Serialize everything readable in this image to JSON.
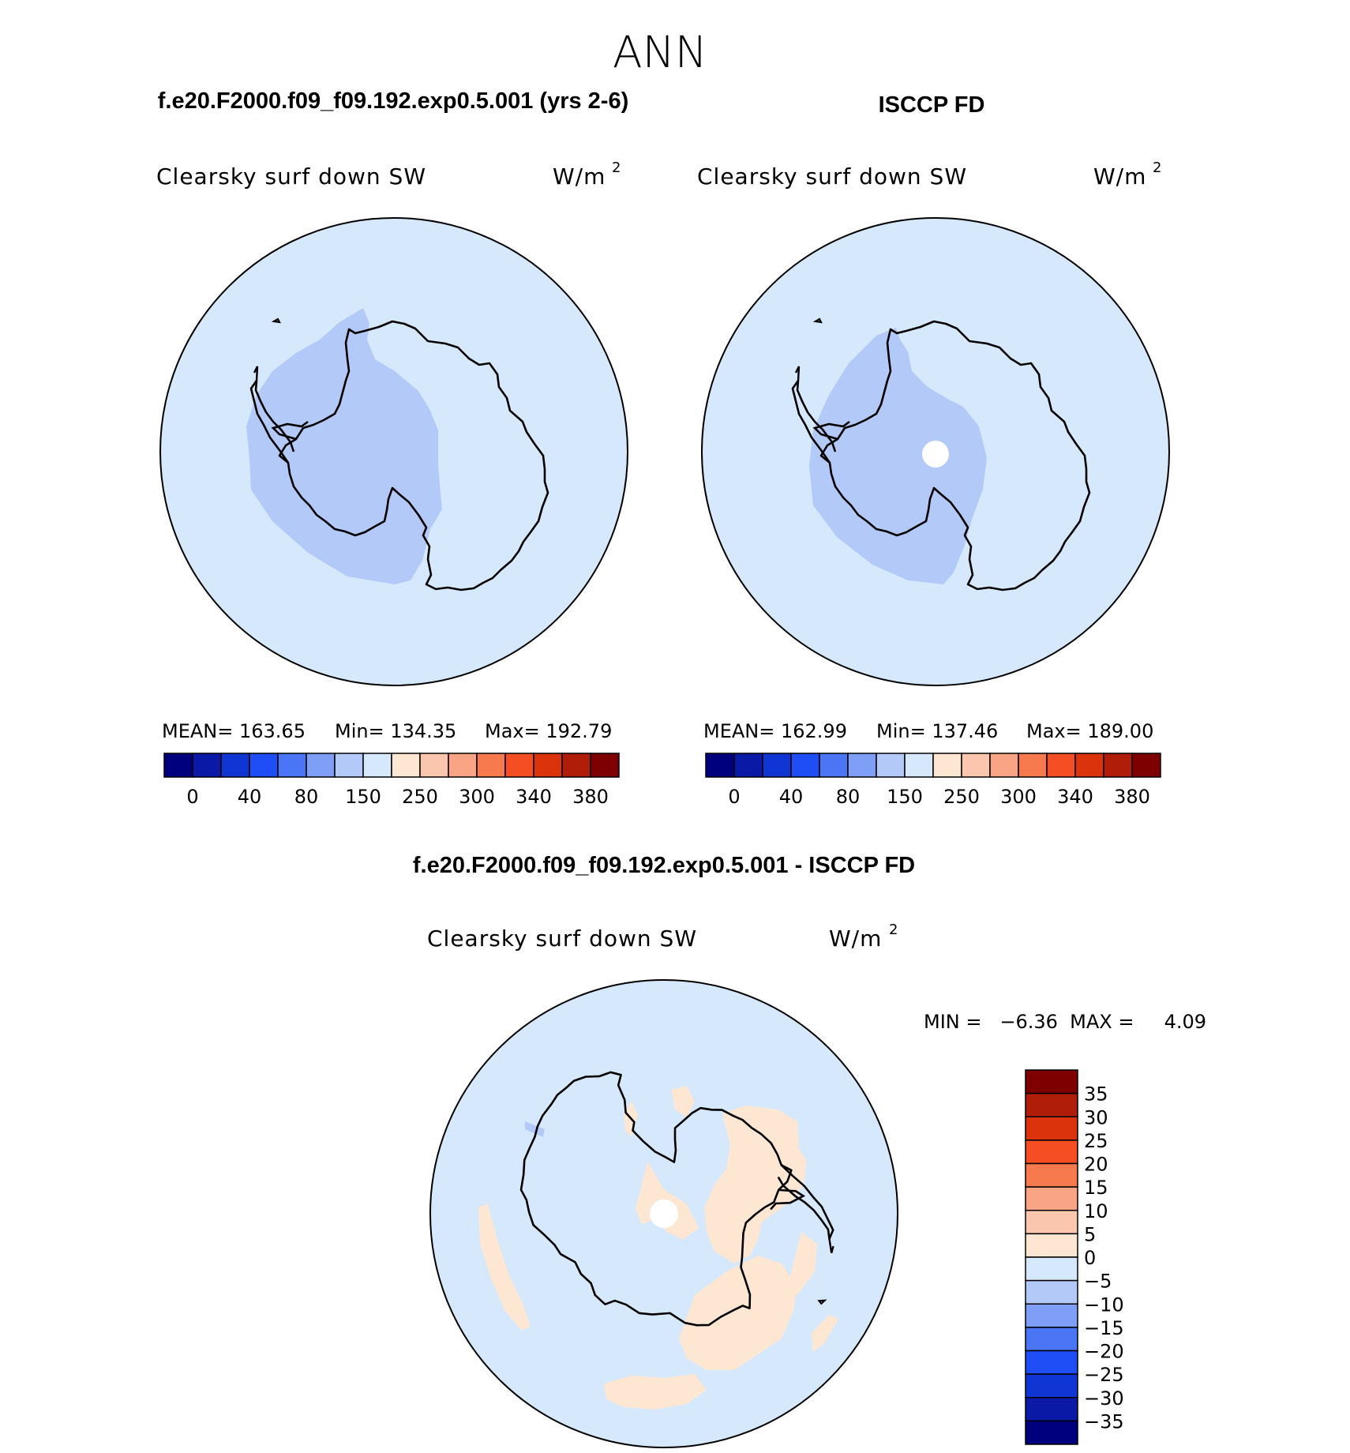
{
  "page": {
    "title": "ANN"
  },
  "panels": [
    {
      "case_title": "f.e20.F2000.f09_f09.192.exp0.5.001 (yrs 2-6)",
      "variable": "Clearsky surf down SW",
      "units": "W/m",
      "units_exp": "2",
      "stats": {
        "mean": "MEAN= 163.65",
        "min": "Min= 134.35",
        "max": "Max= 192.79"
      }
    },
    {
      "case_title": "ISCCP FD",
      "variable": "Clearsky surf down SW",
      "units": "W/m",
      "units_exp": "2",
      "stats": {
        "mean": "MEAN= 162.99",
        "min": "Min= 137.46",
        "max": "Max= 189.00"
      }
    }
  ],
  "main_colorbar": {
    "labels": [
      "0",
      "40",
      "80",
      "150",
      "250",
      "300",
      "340",
      "380"
    ],
    "colors": [
      "#00007f",
      "#0a1aa6",
      "#0f36d3",
      "#1f4ef7",
      "#4a76f6",
      "#7f9ff7",
      "#b3c9f8",
      "#d6e8fb",
      "#fde7d3",
      "#fbc6ae",
      "#f9a485",
      "#f67a4e",
      "#f44e22",
      "#db330c",
      "#b01e0a",
      "#7f0000"
    ]
  },
  "diff_panel": {
    "title": "f.e20.F2000.f09_f09.192.exp0.5.001 - ISCCP FD",
    "variable": "Clearsky surf down SW",
    "units": "W/m",
    "units_exp": "2",
    "minmax_text": "MIN =   −6.36  MAX =     4.09",
    "colorbar_labels": [
      "35",
      "30",
      "25",
      "20",
      "15",
      "10",
      "5",
      "0",
      "−5",
      "−10",
      "−15",
      "−20",
      "−25",
      "−30",
      "−35"
    ],
    "colorbar_colors": [
      "#7f0000",
      "#b01e0a",
      "#db330c",
      "#f44e22",
      "#f67a4e",
      "#f9a485",
      "#fbc6ae",
      "#fde7d3",
      "#d6e8fb",
      "#b3c9f8",
      "#7f9ff7",
      "#4a76f6",
      "#1f4ef7",
      "#0f36d3",
      "#0a1aa6",
      "#00007f"
    ]
  }
}
